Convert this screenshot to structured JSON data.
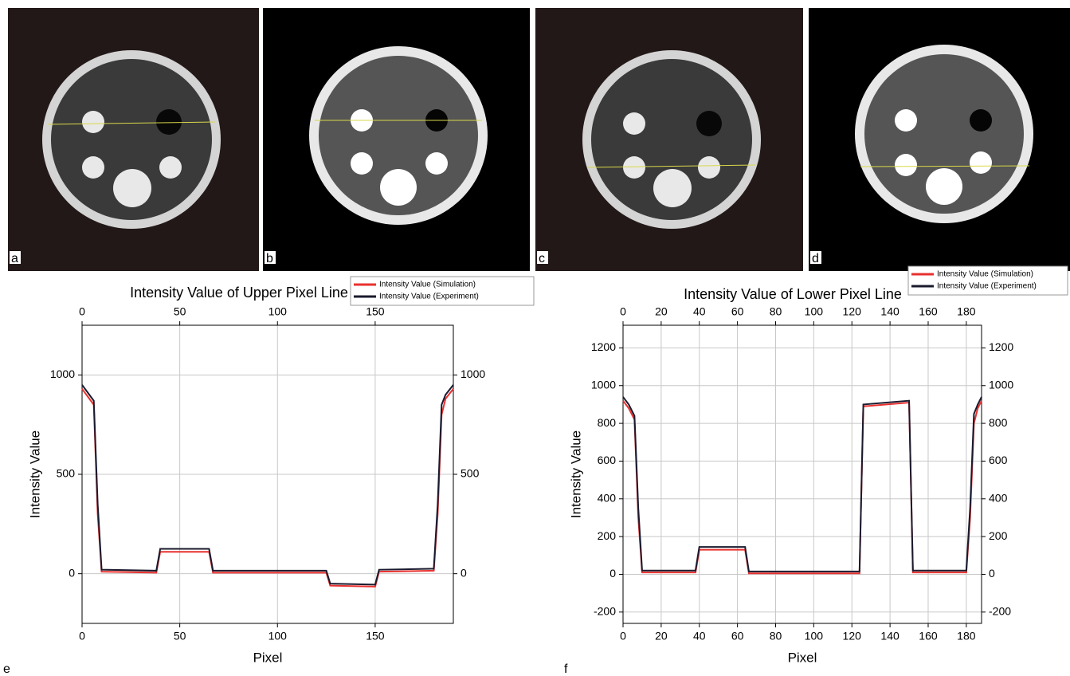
{
  "panels": {
    "labels": [
      "a",
      "b",
      "c",
      "d",
      "e",
      "f"
    ]
  },
  "chart_data": [
    {
      "type": "line",
      "title": "Intensity Value of Upper Pixel Line",
      "x_label": "Pixel",
      "y_label": "Intensity Value",
      "x": [
        0,
        3,
        6,
        8,
        10,
        38,
        40,
        65,
        67,
        125,
        127,
        150,
        152,
        180,
        182,
        184,
        186,
        190
      ],
      "series": [
        {
          "name": "Intensity Value (Simulation)",
          "color": "#e8312f",
          "values": [
            930,
            890,
            850,
            300,
            10,
            5,
            110,
            110,
            5,
            5,
            -60,
            -65,
            10,
            15,
            300,
            800,
            880,
            930
          ]
        },
        {
          "name": "Intensity Value (Experiment)",
          "color": "#1a1a2e",
          "values": [
            950,
            910,
            870,
            350,
            20,
            15,
            125,
            125,
            15,
            15,
            -50,
            -55,
            20,
            25,
            350,
            850,
            900,
            950
          ]
        }
      ],
      "xlim": [
        0,
        190
      ],
      "xticks": [
        0,
        50,
        100,
        150
      ],
      "ylim": [
        -250,
        1250
      ],
      "yticks": [
        0,
        500,
        1000
      ],
      "grid": true
    },
    {
      "type": "line",
      "title": "Intensity Value of Lower Pixel Line",
      "x_label": "Pixel",
      "y_label": "Intensity Value",
      "x": [
        0,
        3,
        6,
        8,
        10,
        38,
        40,
        64,
        66,
        124,
        126,
        150,
        152,
        180,
        182,
        184,
        186,
        188
      ],
      "series": [
        {
          "name": "Intensity Value (Simulation)",
          "color": "#e8312f",
          "values": [
            920,
            880,
            820,
            300,
            10,
            10,
            130,
            130,
            5,
            5,
            890,
            910,
            10,
            10,
            300,
            800,
            880,
            920
          ]
        },
        {
          "name": "Intensity Value (Experiment)",
          "color": "#1a1a2e",
          "values": [
            940,
            900,
            840,
            350,
            20,
            20,
            145,
            145,
            15,
            15,
            900,
            920,
            20,
            20,
            350,
            850,
            900,
            940
          ]
        }
      ],
      "xlim": [
        0,
        188
      ],
      "xticks": [
        0,
        20,
        40,
        60,
        80,
        100,
        120,
        140,
        160,
        180
      ],
      "ylim": [
        -260,
        1320
      ],
      "yticks": [
        -200,
        0,
        200,
        400,
        600,
        800,
        1000,
        1200
      ],
      "grid": true
    }
  ]
}
